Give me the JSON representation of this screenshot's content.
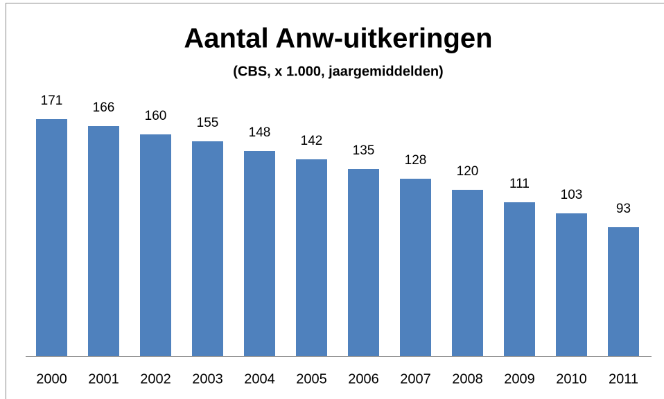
{
  "chart_data": {
    "type": "bar",
    "title": "Aantal Anw-uitkeringen",
    "subtitle": "(CBS, x 1.000, jaargemiddelden)",
    "categories": [
      "2000",
      "2001",
      "2002",
      "2003",
      "2004",
      "2005",
      "2006",
      "2007",
      "2008",
      "2009",
      "2010",
      "2011"
    ],
    "values": [
      171,
      166,
      160,
      155,
      148,
      142,
      135,
      128,
      120,
      111,
      103,
      93
    ],
    "color": "#4f81bd",
    "ylim": [
      0,
      200
    ]
  }
}
